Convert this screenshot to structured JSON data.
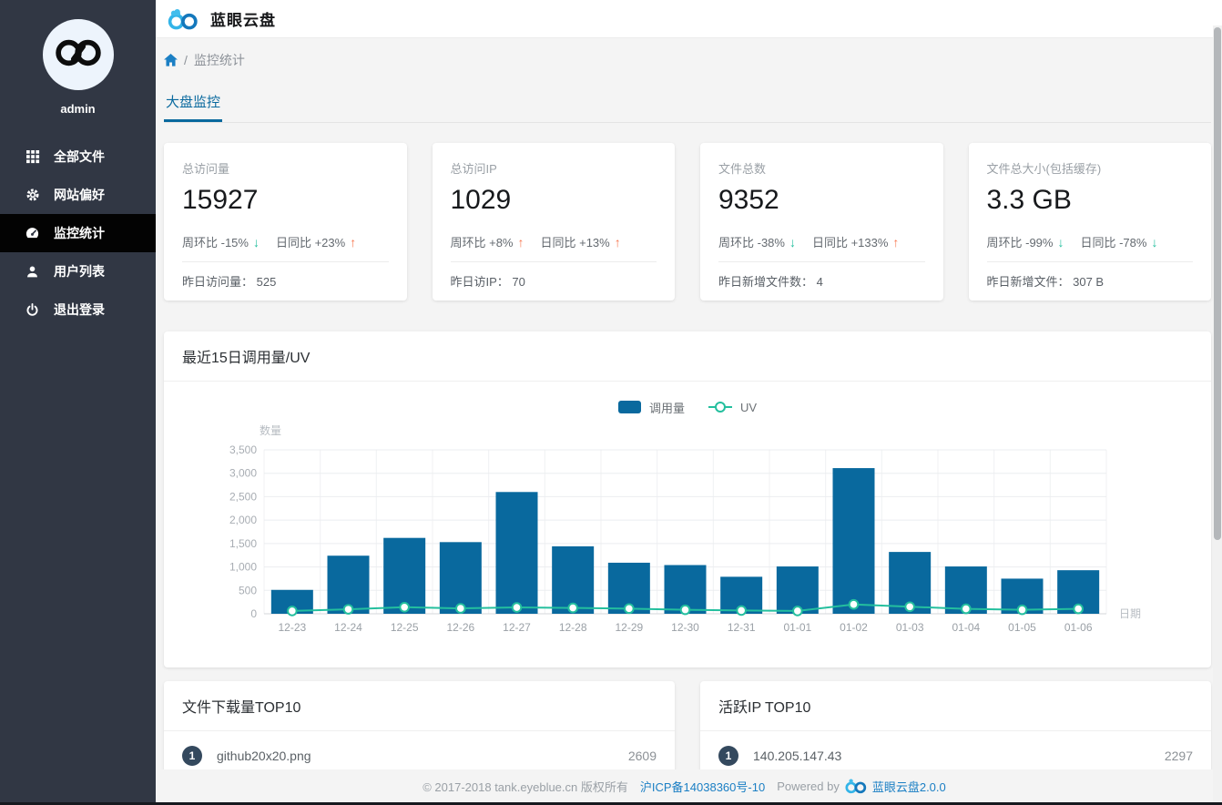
{
  "colors": {
    "accent_blue": "#09699e",
    "teal_green": "#24bf9e",
    "salmon_orange": "#f7764f",
    "link_blue": "#1b7fc4",
    "sidebar_bg": "#313744",
    "badge_bg": "#34495e"
  },
  "sidebar": {
    "username": "admin",
    "items": [
      {
        "label": "全部文件",
        "icon": "grid-icon",
        "active": false
      },
      {
        "label": "网站偏好",
        "icon": "gear-icon",
        "active": false
      },
      {
        "label": "监控统计",
        "icon": "dashboard-icon",
        "active": true
      },
      {
        "label": "用户列表",
        "icon": "user-icon",
        "active": false
      },
      {
        "label": "退出登录",
        "icon": "power-icon",
        "active": false
      }
    ]
  },
  "header": {
    "title": "蓝眼云盘",
    "logo_icon": "infinity-cloud-logo"
  },
  "breadcrumb": {
    "home_icon": "home-icon",
    "separator": "/",
    "current": "监控统计"
  },
  "tabs": [
    {
      "label": "大盘监控",
      "active": true
    }
  ],
  "stats": {
    "cards": [
      {
        "label": "总访问量",
        "value": "15927",
        "trends": [
          {
            "name": "周环比",
            "delta": "-15%",
            "dir": "down"
          },
          {
            "name": "日同比",
            "delta": "+23%",
            "dir": "up"
          }
        ],
        "foot_label": "昨日访问量：",
        "foot_value": "525"
      },
      {
        "label": "总访问IP",
        "value": "1029",
        "trends": [
          {
            "name": "周环比",
            "delta": "+8%",
            "dir": "up"
          },
          {
            "name": "日同比",
            "delta": "+13%",
            "dir": "up"
          }
        ],
        "foot_label": "昨日访IP：",
        "foot_value": "70"
      },
      {
        "label": "文件总数",
        "value": "9352",
        "trends": [
          {
            "name": "周环比",
            "delta": "-38%",
            "dir": "down"
          },
          {
            "name": "日同比",
            "delta": "+133%",
            "dir": "up"
          }
        ],
        "foot_label": "昨日新增文件数：",
        "foot_value": "4"
      },
      {
        "label": "文件总大小(包括缓存)",
        "value": "3.3 GB",
        "trends": [
          {
            "name": "周环比",
            "delta": "-99%",
            "dir": "down"
          },
          {
            "name": "日同比",
            "delta": "-78%",
            "dir": "down"
          }
        ],
        "foot_label": "昨日新增文件：",
        "foot_value": "307 B"
      }
    ]
  },
  "chart_data": {
    "type": "bar",
    "title": "最近15日调用量/UV",
    "categories": [
      "12-23",
      "12-24",
      "12-25",
      "12-26",
      "12-27",
      "12-28",
      "12-29",
      "12-30",
      "12-31",
      "01-01",
      "01-02",
      "01-03",
      "01-04",
      "01-05",
      "01-06"
    ],
    "series": [
      {
        "name": "调用量",
        "type": "bar",
        "color": "#09699e",
        "values": [
          510,
          1240,
          1620,
          1530,
          2600,
          1440,
          1090,
          1040,
          790,
          1010,
          3110,
          1320,
          1010,
          750,
          930
        ]
      },
      {
        "name": "UV",
        "type": "line",
        "color": "#24bf9e",
        "values": [
          60,
          95,
          140,
          115,
          135,
          125,
          110,
          85,
          70,
          60,
          200,
          150,
          105,
          85,
          105
        ]
      }
    ],
    "xlabel": "日期",
    "ylabel": "数量",
    "ylim": [
      0,
      3500
    ],
    "ytick_step": 500,
    "grid": true,
    "legend_position": "top-center"
  },
  "top_lists": [
    {
      "title": "文件下载量TOP10",
      "items": [
        {
          "rank": "1",
          "name": "github20x20.png",
          "value": "2609"
        }
      ]
    },
    {
      "title": "活跃IP TOP10",
      "items": [
        {
          "rank": "1",
          "name": "140.205.147.43",
          "value": "2297"
        }
      ]
    }
  ],
  "footer": {
    "copyright": "© 2017-2018 tank.eyeblue.cn 版权所有",
    "icp": "沪ICP备14038360号-10",
    "powered_by": "Powered by",
    "product": "蓝眼云盘2.0.0"
  }
}
